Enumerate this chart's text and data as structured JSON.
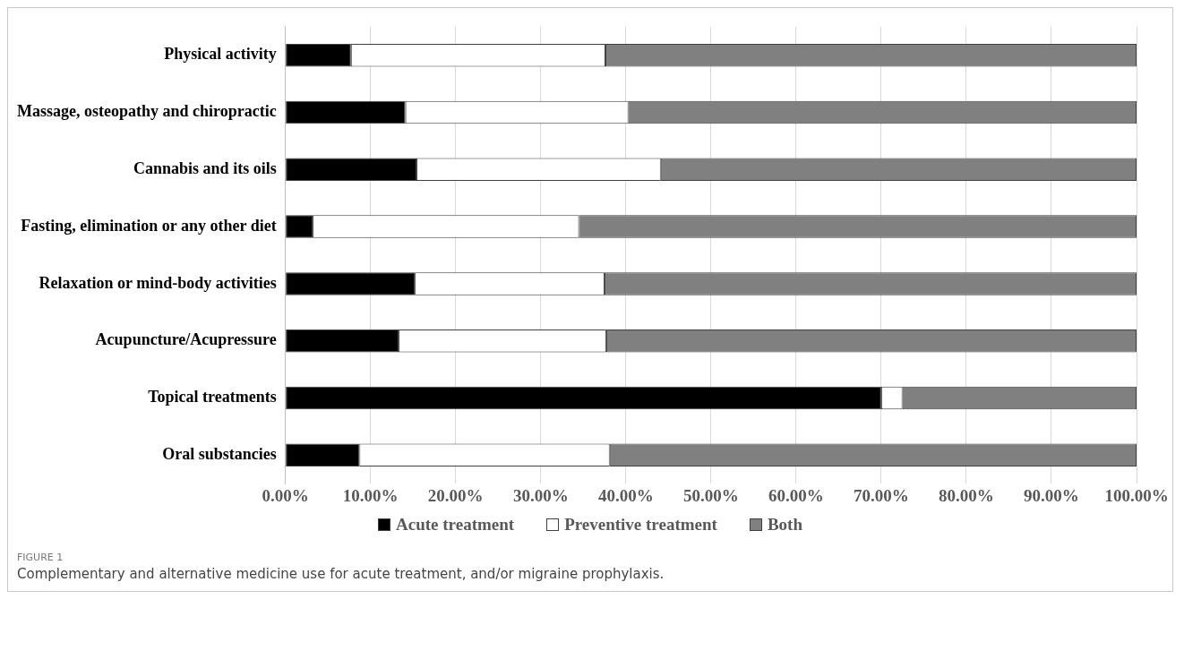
{
  "chart_data": {
    "type": "bar",
    "orientation": "horizontal",
    "stacked": true,
    "categories": [
      "Physical activity",
      "Massage, osteopathy and chiropractic",
      "Cannabis and its oils",
      "Fasting, elimination or any other diet",
      "Relaxation or mind-body activities",
      "Acupuncture/Acupressure",
      "Topical treatments",
      "Oral substancies"
    ],
    "series": [
      {
        "name": "Acute treatment",
        "color": "#000000",
        "values": [
          7.7,
          14.1,
          15.4,
          3.2,
          15.2,
          13.3,
          70.0,
          8.7
        ]
      },
      {
        "name": "Preventive treatment",
        "color": "#ffffff",
        "values": [
          29.9,
          26.2,
          28.7,
          31.3,
          22.3,
          24.4,
          2.5,
          29.4
        ]
      },
      {
        "name": "Both",
        "color": "#808080",
        "values": [
          62.4,
          59.7,
          55.9,
          65.5,
          62.5,
          62.3,
          27.5,
          61.9
        ]
      }
    ],
    "xlim": [
      0,
      100
    ],
    "xticks": [
      {
        "value": 0,
        "label": "0.00%"
      },
      {
        "value": 10,
        "label": "10.00%"
      },
      {
        "value": 20,
        "label": "20.00%"
      },
      {
        "value": 30,
        "label": "30.00%"
      },
      {
        "value": 40,
        "label": "40.00%"
      },
      {
        "value": 50,
        "label": "50.00%"
      },
      {
        "value": 60,
        "label": "60.00%"
      },
      {
        "value": 70,
        "label": "70.00%"
      },
      {
        "value": 80,
        "label": "80.00%"
      },
      {
        "value": 90,
        "label": "90.00%"
      },
      {
        "value": 100,
        "label": "100.00%"
      }
    ],
    "grid": "x",
    "legend": "bottom",
    "annotations": [
      "FIGURE 1",
      "Complementary and alternative medicine use for acute treatment, and/or migraine prophylaxis."
    ]
  }
}
